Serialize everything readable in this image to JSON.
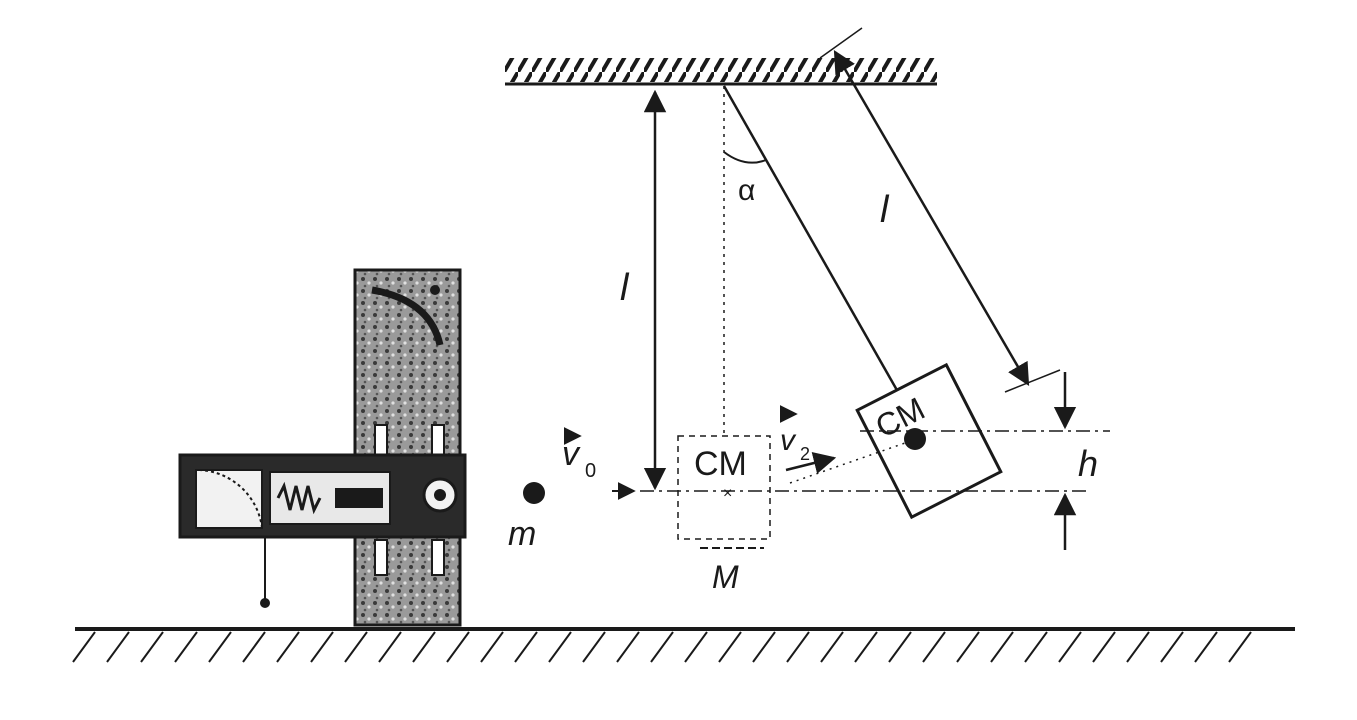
{
  "labels": {
    "length_vertical": "l",
    "length_slanted": "l",
    "angle": "α",
    "cm_initial": "CM",
    "cm_final": "CM",
    "mass_bullet": "m",
    "mass_block": "M",
    "velocity_initial": "v",
    "velocity_initial_sub": "0",
    "velocity_final": "v",
    "velocity_final_sub": "2",
    "height": "h"
  },
  "icons": {
    "launcher": "ballistic-launcher-icon",
    "bullet": "bullet-ball-icon"
  },
  "colors": {
    "ink": "#1a1a1a",
    "background": "#ffffff"
  }
}
